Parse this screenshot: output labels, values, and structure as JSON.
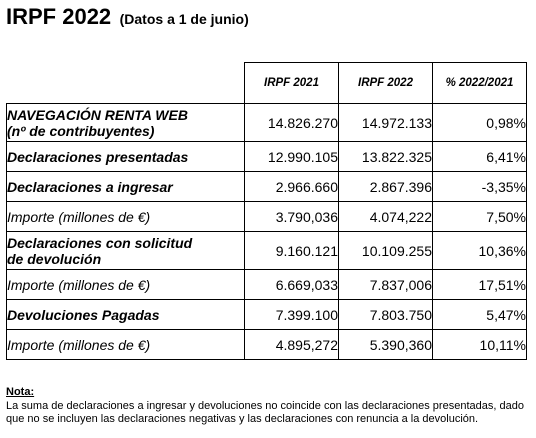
{
  "header": {
    "title": "IRPF 2022",
    "subtitle": "(Datos a 1 de junio)"
  },
  "table": {
    "columns": [
      "IRPF 2021",
      "IRPF 2022",
      "% 2022/2021"
    ],
    "rows": [
      {
        "label_line1": "NAVEGACIÓN RENTA WEB",
        "label_line2": "(nº de contribuyentes)",
        "v2021": "14.826.270",
        "v2022": "14.972.133",
        "pct": "0,98%"
      },
      {
        "label_line1": "Declaraciones presentadas",
        "v2021": "12.990.105",
        "v2022": "13.822.325",
        "pct": "6,41%"
      },
      {
        "label_line1": "Declaraciones a ingresar",
        "v2021": "2.966.660",
        "v2022": "2.867.396",
        "pct": "-3,35%"
      },
      {
        "label_line1": "Importe (millones de €)",
        "v2021": "3.790,036",
        "v2022": "4.074,222",
        "pct": "7,50%"
      },
      {
        "label_line1": "Declaraciones con solicitud",
        "label_line2": "de devolución",
        "v2021": "9.160.121",
        "v2022": "10.109.255",
        "pct": "10,36%"
      },
      {
        "label_line1": "Importe (millones de €)",
        "v2021": "6.669,033",
        "v2022": "7.837,006",
        "pct": "17,51%"
      },
      {
        "label_line1": "Devoluciones Pagadas",
        "v2021": "7.399.100",
        "v2022": "7.803.750",
        "pct": "5,47%"
      },
      {
        "label_line1": "Importe (millones de €)",
        "v2021": "4.895,272",
        "v2022": "5.390,360",
        "pct": "10,11%"
      }
    ]
  },
  "note": {
    "title": "Nota:",
    "text": "La suma de declaraciones a ingresar y devoluciones no coincide con las declaraciones presentadas, dado que no se incluyen las declaraciones negativas y las declaraciones con renuncia a la devolución."
  }
}
